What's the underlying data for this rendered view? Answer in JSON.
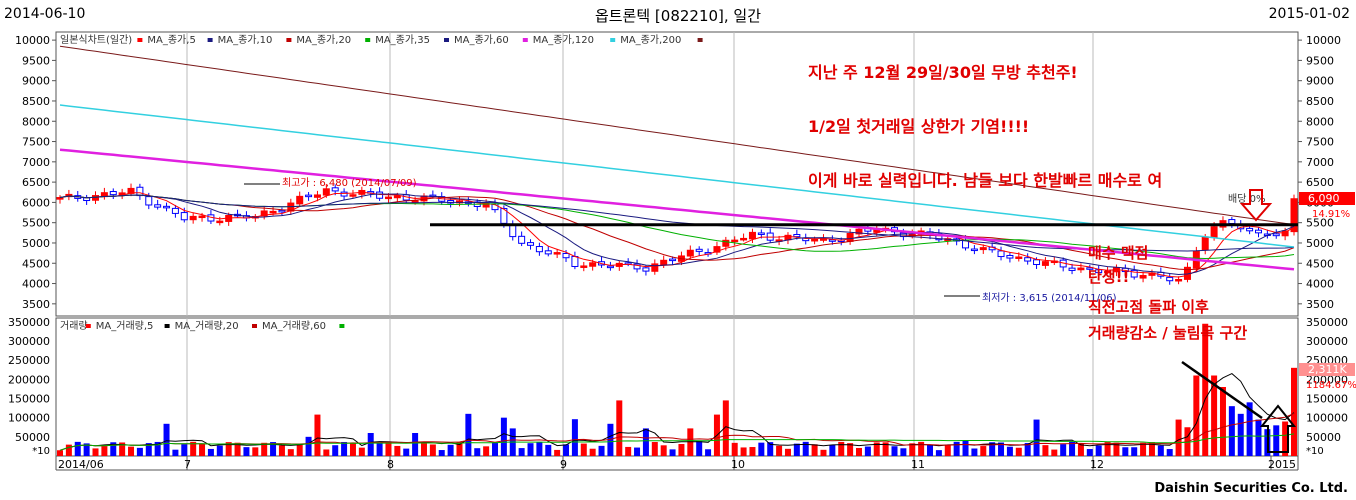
{
  "header": {
    "start_date": "2014-06-10",
    "end_date": "2015-01-02",
    "title": "옵트론텍 [082210], 일간"
  },
  "footer": {
    "brand": "Daishin Securities Co. Ltd."
  },
  "colors": {
    "up": "#ff0000",
    "down": "#0000ff",
    "ma5": "#ff0000",
    "ma10": "#1a1a80",
    "ma20": "#c00000",
    "ma35": "#00b000",
    "ma60": "#1a1a80",
    "ma120": "#e020e0",
    "ma200": "#33d0e0",
    "ma_long": "#7a1a1a",
    "annotation": "#e00000"
  },
  "chart_data": [
    {
      "type": "candlestick",
      "legend": [
        "일본식차트(일간)",
        "MA_종가,5",
        "MA_종가,10",
        "MA_종가,20",
        "MA_종가,35",
        "MA_종가,60",
        "MA_종가,120",
        "MA_종가,200"
      ],
      "ylim": [
        3200,
        10200
      ],
      "y_ticks": [
        "10000",
        "9500",
        "9000",
        "8500",
        "8000",
        "7500",
        "7000",
        "6500",
        "6000",
        "5500",
        "5000",
        "4500",
        "4000",
        "3500"
      ],
      "x_labels": [
        "2014/06",
        "7",
        "8",
        "9",
        "10",
        "11",
        "12",
        "2015"
      ],
      "last_price": "6,090",
      "last_change": "14.91%",
      "high_label": "최고가 : 6,480 (2014/07/09)",
      "low_label": "최저가 : 3,615 (2014/11/06)",
      "resistance_level": 5450,
      "annotations": [
        "지난 주 12월 29일/30일 무방 추천주!",
        "1/2일 첫거래일 상한가 기염!!!!",
        "이게 바로 실력입니다. 남들 보다 한발빠르 매수로 여",
        "매수 맥점",
        "탄생!!",
        "직전고점 돌파 이후"
      ],
      "overlay_label": "배당 0%"
    },
    {
      "type": "bar",
      "legend": [
        "거래량",
        "MA_거래량,5",
        "MA_거래량,20",
        "MA_거래량,60"
      ],
      "ylim": [
        0,
        360000
      ],
      "y_ticks": [
        "350000",
        "300000",
        "250000",
        "200000",
        "150000",
        "100000",
        "50000"
      ],
      "unit_label": "*10",
      "last_volume": "2,311K",
      "last_volume_change": "1184.67%",
      "annotations": [
        "거래량감소 / 눌림목 구간"
      ]
    }
  ]
}
